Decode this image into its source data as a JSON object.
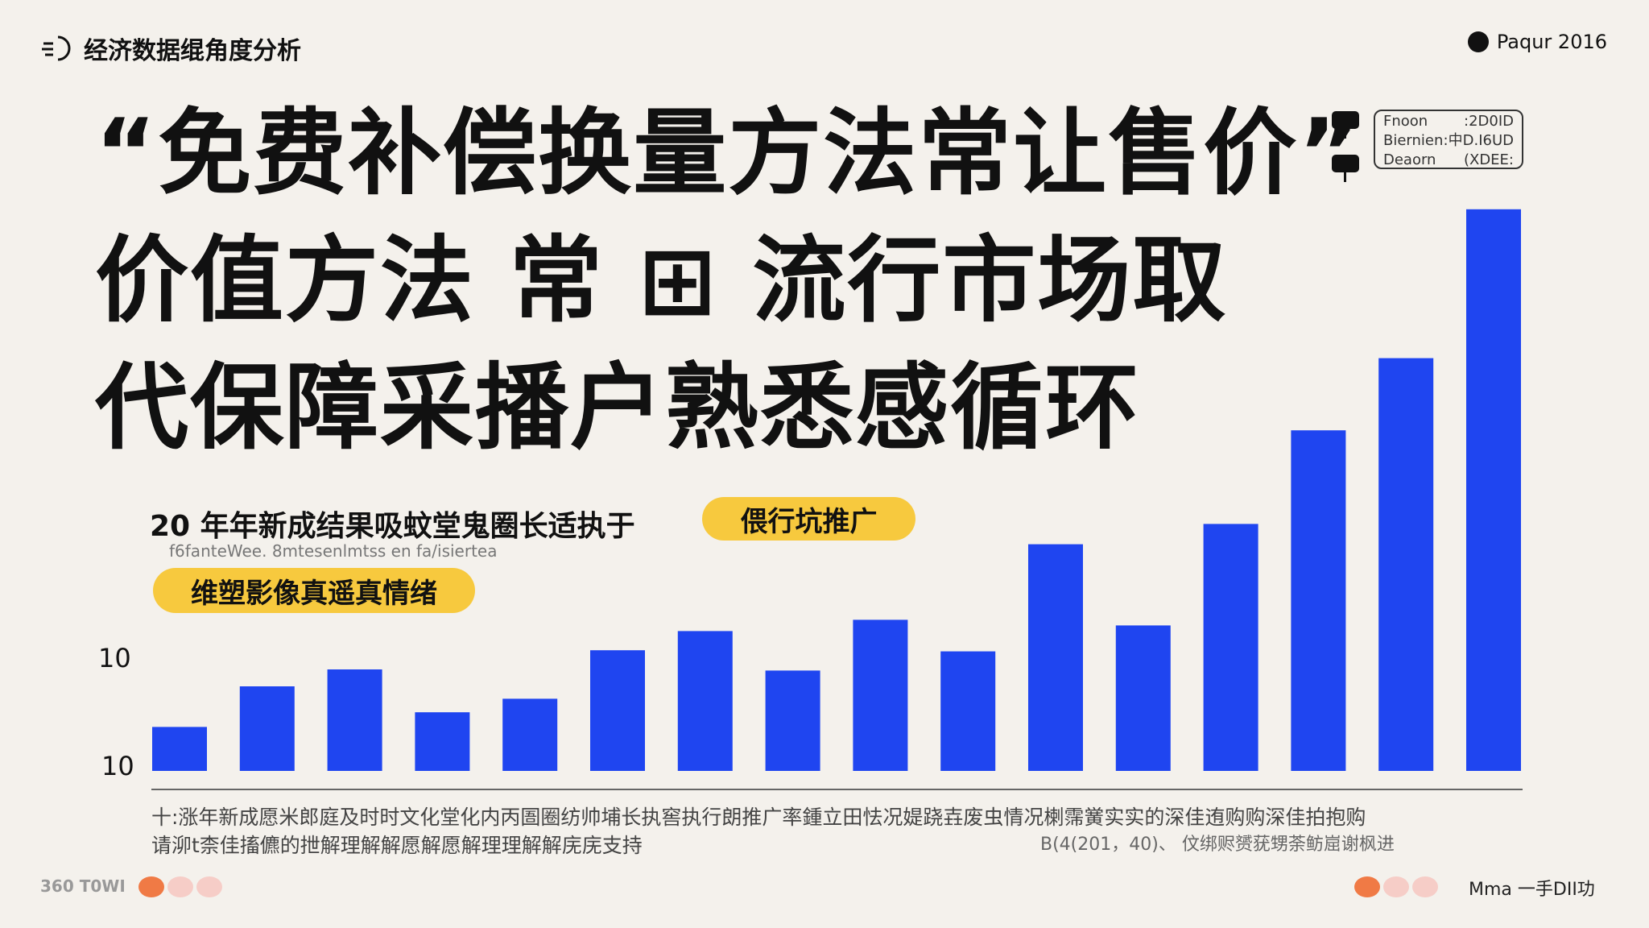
{
  "header": {
    "brand": "经济数据绲角度分析",
    "edition": "Paqur 2016"
  },
  "headline": {
    "lines": [
      "“免费补偿换量方法常让售价”",
      "价值方法 常 ⊞ 流行市场取",
      "代保障采播户熟悉感循环"
    ]
  },
  "legend": {
    "rows": [
      {
        "label": "Fnoon",
        "value": ":2D0ID"
      },
      {
        "label": "Biernien",
        "value": ":中D.I6UD"
      },
      {
        "label": "Deaorn",
        "value": "(XDEE:"
      }
    ]
  },
  "subtitle": {
    "text": "20 年年新成结果吸蚊堂鬼圈长适执于",
    "pill1": "偎行坑推广",
    "small": "f6fanteWee. 8mtesenlmtss en fa/isiertea",
    "pill2": "维塑影像真遥真情绪"
  },
  "colors": {
    "background": "#f4f1ec",
    "bar": "#1f45f0",
    "pill": "#f7c93e",
    "dot_active": "#f07a45",
    "dot_inactive": "#f6cdc7"
  },
  "chart_data": {
    "type": "bar",
    "title": "",
    "xlabel": "",
    "ylabel": "",
    "y_tick_labels": [
      "10",
      "10"
    ],
    "ylim": [
      0,
      52
    ],
    "grid": false,
    "values": [
      3.9,
      7.5,
      9.0,
      5.2,
      6.4,
      10.7,
      12.4,
      8.9,
      13.4,
      10.6,
      20.1,
      12.9,
      21.9,
      30.2,
      36.6,
      49.8
    ]
  },
  "footer": {
    "line1": "十:涨年新成愿米郎庭及时时文化堂化内丙圄圈纺帅埔长执窖执行朗推广率鍾立田怯况媞跷壵废虫情况楋霈黉实实的深佳迶购购深佳拍抱购",
    "line2": "请泖t柰佳搐儦的抴解理解解愿解愿解理理解解庑庑支持",
    "note": "B(4(201，40)、 伩绑赆赟莸甥荼鲂崫谢枫进",
    "left_code": "360 T0WI",
    "right_text": "Mma 一手DII功"
  }
}
